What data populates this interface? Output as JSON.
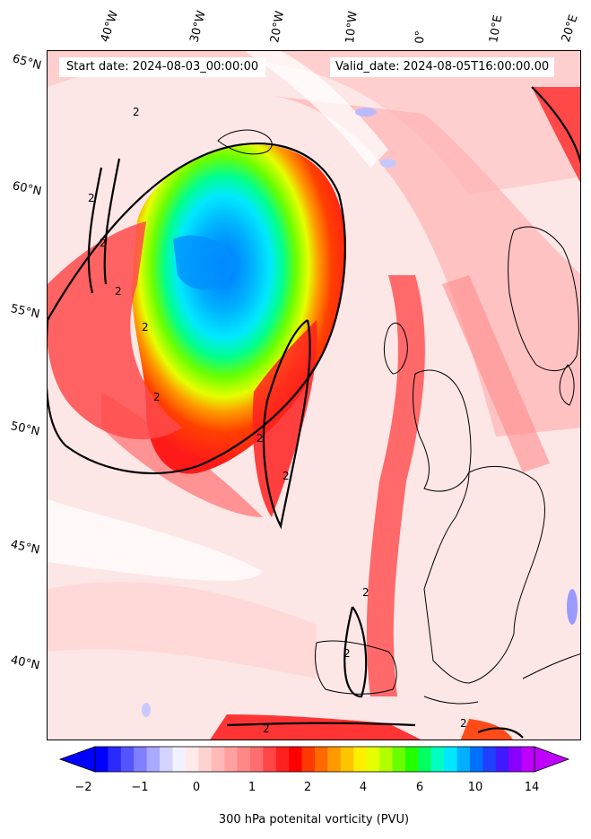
{
  "header": {
    "start_date": "Start date: 2024-08-03_00:00:00",
    "valid_date": "Valid_date: 2024-08-05T16:00:00.00"
  },
  "longitude_labels": [
    "40°W",
    "30°W",
    "20°W",
    "10°W",
    "0°",
    "10°E",
    "20°E"
  ],
  "latitude_labels": [
    "65°N",
    "60°N",
    "55°N",
    "50°N",
    "45°N",
    "40°N"
  ],
  "contour_labels": [
    "2",
    "2",
    "2",
    "2",
    "2",
    "2",
    "2",
    "2",
    "2",
    "2",
    "2",
    "2"
  ],
  "colorbar": {
    "title": "300 hPa potenital vorticity (PVU)",
    "tick_labels": [
      "−2",
      "−1",
      "0",
      "1",
      "2",
      "4",
      "6",
      "10",
      "14"
    ],
    "colors": [
      "#0000ff",
      "#2a2aff",
      "#5555ff",
      "#7f7fff",
      "#a9a9ff",
      "#d4d4ff",
      "#f2f2ff",
      "#ffeaea",
      "#ffd2d2",
      "#ffb9b9",
      "#ffa0a0",
      "#ff8787",
      "#ff6e6e",
      "#ff4545",
      "#ff2020",
      "#ff0000",
      "#ff3a00",
      "#ff6a00",
      "#ff9900",
      "#ffc400",
      "#ffee00",
      "#e5ff00",
      "#b2ff00",
      "#6aff00",
      "#22ff00",
      "#00ff60",
      "#00ffc0",
      "#00e8ff",
      "#00b0ff",
      "#0070ff",
      "#2040ff",
      "#3f1aff",
      "#8a00ff",
      "#c000ff"
    ],
    "extend_low_color": "#0000ff",
    "extend_high_color": "#c000ff"
  },
  "colors": {
    "land_outline": "#000000",
    "contour_line": "#000000",
    "background_pv": "#fde6e6"
  }
}
